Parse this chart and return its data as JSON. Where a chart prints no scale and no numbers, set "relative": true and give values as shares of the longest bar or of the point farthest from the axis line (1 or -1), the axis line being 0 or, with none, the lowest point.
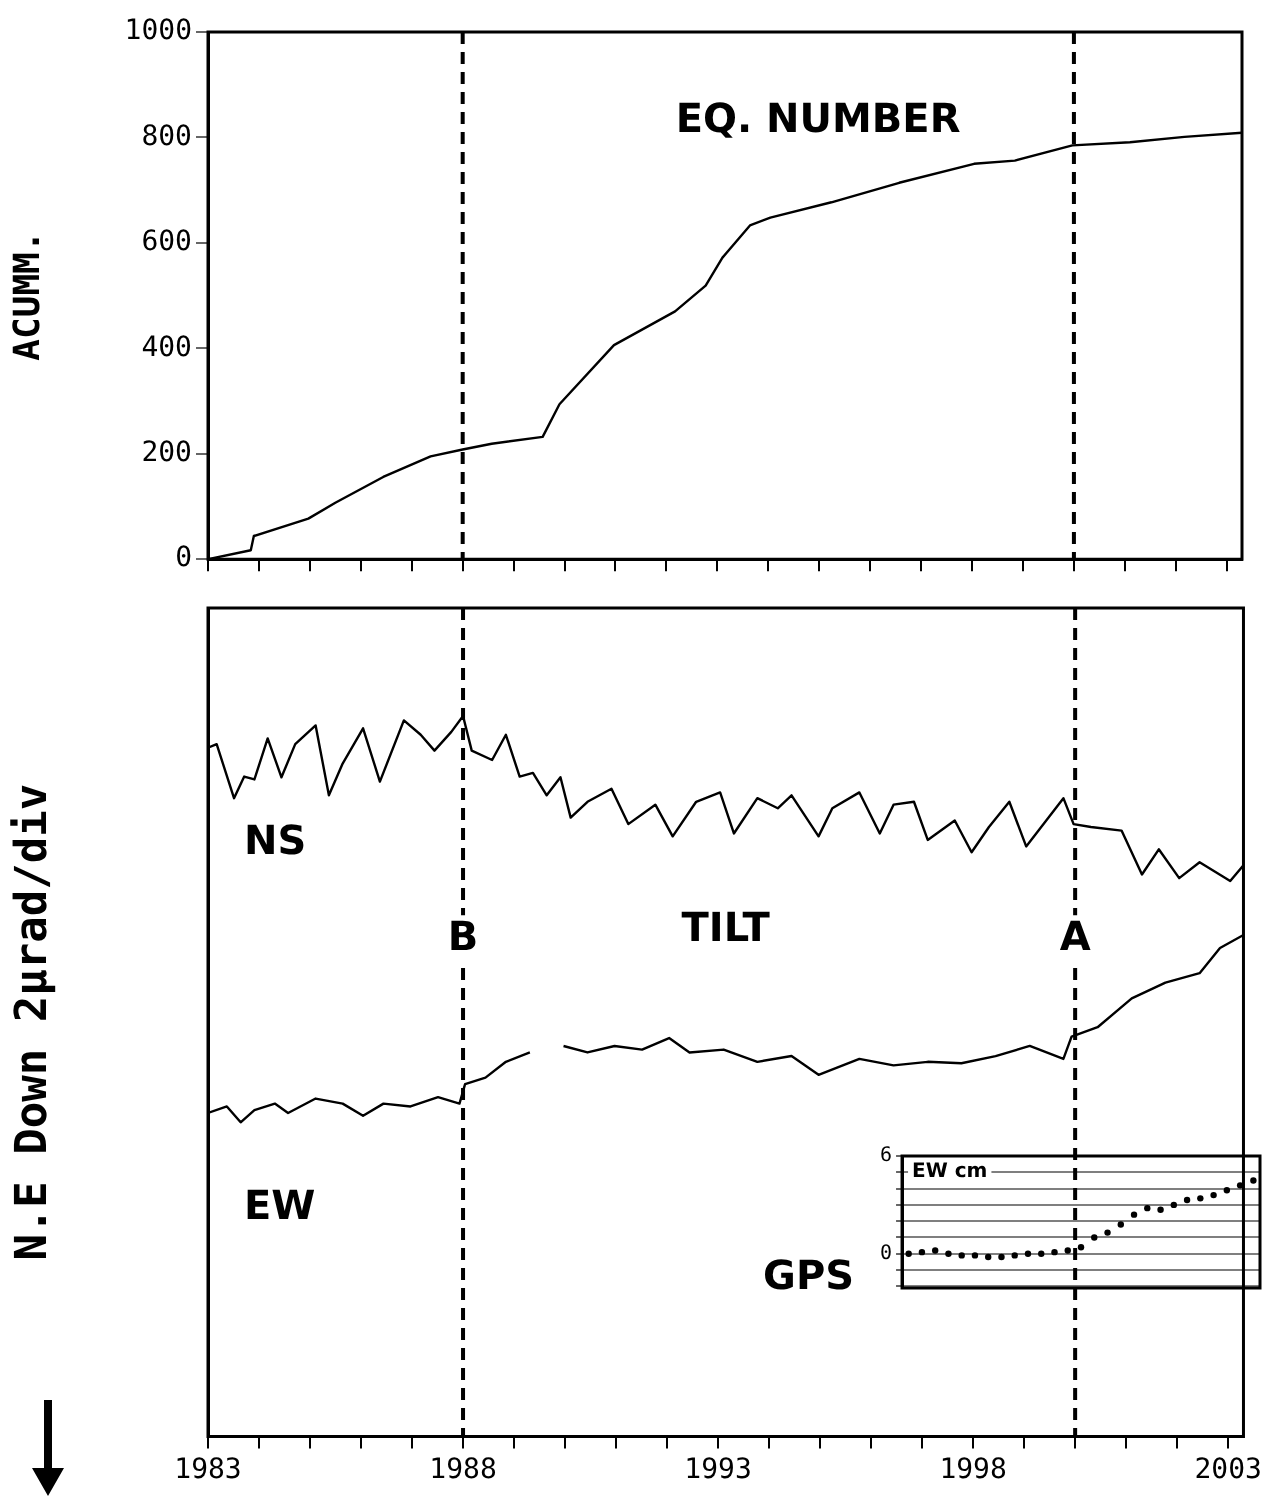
{
  "chart_data": [
    {
      "type": "line",
      "ylabel": "ACUMM.",
      "annotations": [
        "EQ. NUMBER"
      ],
      "x": [
        1983.0,
        1983.84,
        1983.9,
        1984.97,
        1985.5,
        1986.44,
        1987.37,
        1988.0,
        1988.57,
        1989.57,
        1989.9,
        1990.97,
        1992.17,
        1992.77,
        1993.1,
        1993.64,
        1994.04,
        1995.24,
        1996.57,
        1998.04,
        1998.84,
        1999.97,
        2001.1,
        2002.17,
        2003.3
      ],
      "series": [
        {
          "color": "#000000",
          "values": [
            0,
            17,
            44,
            77,
            107,
            156,
            195,
            208,
            219,
            232,
            294,
            406,
            470,
            519,
            572,
            633,
            648,
            677,
            714,
            750,
            756,
            785,
            791,
            801,
            809
          ]
        }
      ],
      "xlim": [
        1983,
        2003.3
      ],
      "xticks": [
        1983,
        {
          "value": 1984,
          "label": null
        },
        {
          "value": 1985,
          "label": null
        },
        {
          "value": 1986,
          "label": null
        },
        {
          "value": 1987,
          "label": null
        },
        1988,
        {
          "value": 1989,
          "label": null
        },
        {
          "value": 1990,
          "label": null
        },
        {
          "value": 1991,
          "label": null
        },
        {
          "value": 1992,
          "label": null
        },
        1993,
        {
          "value": 1994,
          "label": null
        },
        {
          "value": 1995,
          "label": null
        },
        {
          "value": 1996,
          "label": null
        },
        {
          "value": 1997,
          "label": null
        },
        1998,
        {
          "value": 1999,
          "label": null
        },
        {
          "value": 2000,
          "label": null
        },
        {
          "value": 2001,
          "label": null
        },
        {
          "value": 2002,
          "label": null
        },
        2003
      ],
      "ylim": [
        0,
        1000
      ],
      "yticks": [
        0,
        200,
        400,
        600,
        800,
        1000
      ],
      "tick_labels": "y",
      "marker": "none",
      "line_style": "solid",
      "ref_lines": [
        {
          "axis": "x",
          "value": 1988.0,
          "line_style": "dashed"
        },
        {
          "axis": "x",
          "value": 2000.0,
          "line_style": "dashed"
        }
      ]
    },
    {
      "type": "line",
      "ylabel": "N.E Down 2μrad/div",
      "relative": true,
      "annotations": [
        "TILT",
        "GPS"
      ],
      "series": [
        {
          "name": "NS",
          "color": "#000000",
          "x": [
            1983.0,
            1983.17,
            1983.51,
            1983.71,
            1983.91,
            1984.17,
            1984.44,
            1984.71,
            1985.11,
            1985.37,
            1985.64,
            1986.04,
            1986.37,
            1986.84,
            1987.17,
            1987.44,
            1987.77,
            1988.0,
            1988.17,
            1988.57,
            1988.84,
            1989.11,
            1989.37,
            1989.64,
            1989.91,
            1990.11,
            1990.44,
            1990.91,
            1991.24,
            1991.77,
            1992.11,
            1992.57,
            1993.04,
            1993.31,
            1993.77,
            1994.17,
            1994.44,
            1994.97,
            1995.24,
            1995.77,
            1996.17,
            1996.44,
            1996.84,
            1997.11,
            1997.64,
            1997.97,
            1998.31,
            1998.71,
            1999.04,
            1999.77,
            1999.97,
            2000.31,
            2000.91,
            2001.31,
            2001.64,
            2002.04,
            2002.44,
            2003.04,
            2003.3
          ],
          "values": [
            0.956,
            0.961,
            0.886,
            0.916,
            0.912,
            0.969,
            0.915,
            0.961,
            0.987,
            0.89,
            0.934,
            0.983,
            0.909,
            0.994,
            0.974,
            0.952,
            0.978,
            1,
            0.952,
            0.939,
            0.974,
            0.916,
            0.921,
            0.89,
            0.915,
            0.859,
            0.881,
            0.899,
            0.85,
            0.877,
            0.833,
            0.881,
            0.894,
            0.837,
            0.886,
            0.872,
            0.89,
            0.833,
            0.872,
            0.894,
            0.837,
            0.877,
            0.881,
            0.828,
            0.855,
            0.811,
            0.846,
            0.881,
            0.819,
            0.886,
            0.85,
            0.846,
            0.841,
            0.78,
            0.815,
            0.775,
            0.797,
            0.771,
            0.793
          ]
        },
        {
          "name": "EW",
          "color": "#000000",
          "x": [
            1983.0,
            1983.37,
            1983.64,
            1983.91,
            1984.31,
            1984.57,
            1985.11,
            1985.64,
            1986.04,
            1986.44,
            1986.97,
            1987.51,
            1987.93,
            1988.04,
            1988.44,
            1988.84,
            1989.31,
            1989.64,
            1989.97,
            1990.44,
            1990.97,
            1991.51,
            1992.04,
            1992.44,
            1993.11,
            1993.77,
            1994.44,
            1994.97,
            1995.77,
            1996.44,
            1997.11,
            1997.77,
            1998.44,
            1999.11,
            1999.77,
            1999.93,
            2000.44,
            2001.11,
            2001.77,
            2002.44,
            2002.84,
            2003.3
          ],
          "values": [
            0.449,
            0.458,
            0.436,
            0.453,
            0.462,
            0.449,
            0.469,
            0.462,
            0.445,
            0.462,
            0.458,
            0.471,
            0.462,
            0.489,
            0.498,
            0.52,
            0.533,
            null,
            0.542,
            0.533,
            0.542,
            0.537,
            0.553,
            0.533,
            0.537,
            0.52,
            0.528,
            0.502,
            0.524,
            0.515,
            0.52,
            0.518,
            0.528,
            0.542,
            0.524,
            0.555,
            0.568,
            0.608,
            0.63,
            0.643,
            0.678,
            0.696
          ]
        }
      ],
      "xlim": [
        1983,
        2003.3
      ],
      "xticks": [
        1983,
        {
          "value": 1984,
          "label": null
        },
        {
          "value": 1985,
          "label": null
        },
        {
          "value": 1986,
          "label": null
        },
        {
          "value": 1987,
          "label": null
        },
        1988,
        {
          "value": 1989,
          "label": null
        },
        {
          "value": 1990,
          "label": null
        },
        {
          "value": 1991,
          "label": null
        },
        {
          "value": 1992,
          "label": null
        },
        1993,
        {
          "value": 1994,
          "label": null
        },
        {
          "value": 1995,
          "label": null
        },
        {
          "value": 1996,
          "label": null
        },
        {
          "value": 1997,
          "label": null
        },
        1998,
        {
          "value": 1999,
          "label": null
        },
        {
          "value": 2000,
          "label": null
        },
        {
          "value": 2001,
          "label": null
        },
        {
          "value": 2002,
          "label": null
        },
        2003
      ],
      "tick_labels": "x",
      "marker": "none",
      "line_style": "solid",
      "ref_lines": [
        {
          "axis": "x",
          "value": 1988.0,
          "label": "B",
          "line_style": "dashed"
        },
        {
          "axis": "x",
          "value": 2000.0,
          "label": "A",
          "line_style": "dashed"
        }
      ]
    },
    {
      "type": "scatter",
      "title": "EW cm",
      "categories": [
        null,
        null,
        null,
        null,
        null,
        null,
        null,
        null,
        null,
        null,
        null,
        null,
        null,
        null,
        null,
        null,
        null,
        null,
        null,
        null,
        null,
        null,
        null,
        null,
        null,
        null,
        null
      ],
      "values": [
        0,
        0.1,
        0.2,
        0,
        -0.1,
        -0.1,
        -0.2,
        -0.2,
        -0.1,
        0,
        0,
        0.1,
        0.2,
        0.4,
        1.0,
        1.3,
        1.8,
        2.4,
        2.8,
        2.7,
        3.0,
        3.3,
        3.4,
        3.6,
        3.9,
        4.2,
        4.5
      ],
      "color": "#000000",
      "ylim": [
        -2.1,
        6
      ],
      "yticks": [
        {
          "value": -2,
          "label": null
        },
        {
          "value": -1,
          "label": null
        },
        0,
        {
          "value": 1,
          "label": null
        },
        {
          "value": 2,
          "label": null
        },
        {
          "value": 3,
          "label": null
        },
        {
          "value": 4,
          "label": null
        },
        {
          "value": 5,
          "label": null
        },
        6
      ],
      "tick_labels": "y",
      "grid": "y",
      "marker": "circle"
    }
  ]
}
